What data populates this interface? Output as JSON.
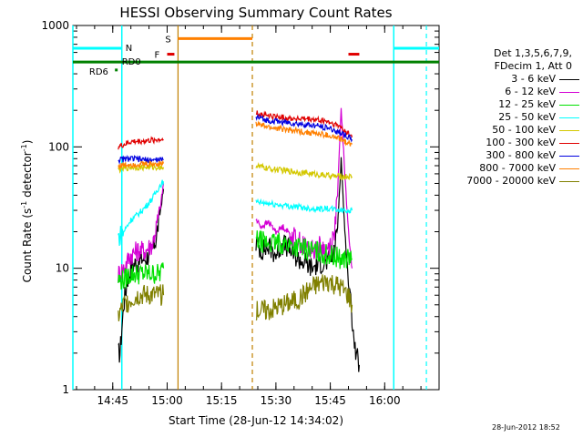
{
  "chart_data": {
    "type": "line",
    "title": "HESSI Observing Summary Count Rates",
    "xlabel": "Start Time (28-Jun-12 14:34:02)",
    "ylabel_main": "Count Rate (s",
    "ylabel_sup": "-1",
    "ylabel_mid": " detector",
    "ylabel_sup2": "-1",
    "ylabel_end": ")",
    "x_unit": "minutes after 14:34:02",
    "xlim": [
      0,
      101
    ],
    "ylim": [
      1,
      1000
    ],
    "yscale": "log",
    "x_ticks": [
      {
        "value": 11,
        "label": "14:45"
      },
      {
        "value": 26,
        "label": "15:00"
      },
      {
        "value": 41,
        "label": "15:15"
      },
      {
        "value": 56,
        "label": "15:30"
      },
      {
        "value": 71,
        "label": "15:45"
      },
      {
        "value": 86,
        "label": "16:00"
      }
    ],
    "y_ticks": [
      {
        "value": 1,
        "label": "1"
      },
      {
        "value": 10,
        "label": "10"
      },
      {
        "value": 100,
        "label": "100"
      },
      {
        "value": 1000,
        "label": "1000"
      }
    ],
    "legend_header": [
      "Det 1,3,5,6,7,9,",
      "FDecim 1, Att 0"
    ],
    "series": [
      {
        "name": "3 - 6 keV",
        "color": "#000000",
        "seg1": [
          [
            12.5,
            2
          ],
          [
            13,
            2
          ],
          [
            14,
            5
          ],
          [
            15,
            8
          ],
          [
            16,
            10
          ],
          [
            17,
            11
          ],
          [
            18,
            11
          ],
          [
            19,
            12
          ],
          [
            20,
            12
          ],
          [
            21,
            13
          ],
          [
            22,
            14
          ],
          [
            23,
            18
          ],
          [
            24,
            28
          ],
          [
            25,
            45
          ]
        ],
        "seg2": [
          [
            50.5,
            16
          ],
          [
            52,
            14
          ],
          [
            54,
            15
          ],
          [
            56,
            13
          ],
          [
            58,
            16
          ],
          [
            60,
            14
          ],
          [
            62,
            12
          ],
          [
            64,
            11
          ],
          [
            66,
            10
          ],
          [
            68,
            11
          ],
          [
            70,
            11
          ],
          [
            72,
            13
          ],
          [
            73,
            22
          ],
          [
            74,
            80
          ],
          [
            75,
            20
          ],
          [
            76,
            8
          ],
          [
            77,
            4
          ],
          [
            78,
            2
          ],
          [
            79,
            1.6
          ]
        ]
      },
      {
        "name": "6 - 12 keV",
        "color": "#d400d4",
        "seg1": [
          [
            12.5,
            9
          ],
          [
            14,
            10
          ],
          [
            16,
            13
          ],
          [
            18,
            14
          ],
          [
            20,
            14
          ],
          [
            22,
            16
          ],
          [
            24,
            30
          ],
          [
            25,
            50
          ]
        ],
        "seg2": [
          [
            50.5,
            25
          ],
          [
            52,
            22
          ],
          [
            54,
            24
          ],
          [
            56,
            20
          ],
          [
            58,
            22
          ],
          [
            60,
            19
          ],
          [
            62,
            17
          ],
          [
            64,
            15
          ],
          [
            66,
            14
          ],
          [
            68,
            15
          ],
          [
            70,
            14
          ],
          [
            72,
            18
          ],
          [
            73,
            40
          ],
          [
            74,
            210
          ],
          [
            75,
            60
          ],
          [
            76,
            20
          ],
          [
            77,
            10
          ]
        ]
      },
      {
        "name": "12 - 25 keV",
        "color": "#00e000",
        "seg1": [
          [
            12.5,
            8
          ],
          [
            14,
            8
          ],
          [
            16,
            9
          ],
          [
            18,
            9
          ],
          [
            20,
            9
          ],
          [
            22,
            9
          ],
          [
            24,
            9
          ],
          [
            25,
            10
          ]
        ],
        "seg2": [
          [
            50.5,
            17
          ],
          [
            54,
            16
          ],
          [
            58,
            16
          ],
          [
            62,
            15
          ],
          [
            66,
            14
          ],
          [
            70,
            13
          ],
          [
            74,
            12
          ],
          [
            76,
            12
          ],
          [
            77,
            12
          ]
        ]
      },
      {
        "name": "25 - 50 keV",
        "color": "#00ffff",
        "seg1": [
          [
            12.5,
            18
          ],
          [
            14,
            20
          ],
          [
            16,
            25
          ],
          [
            18,
            28
          ],
          [
            20,
            32
          ],
          [
            22,
            38
          ],
          [
            24,
            48
          ],
          [
            25,
            52
          ]
        ],
        "seg2": [
          [
            50.5,
            35
          ],
          [
            54,
            34
          ],
          [
            58,
            33
          ],
          [
            62,
            32
          ],
          [
            66,
            31
          ],
          [
            70,
            31
          ],
          [
            74,
            30
          ],
          [
            77,
            30
          ]
        ]
      },
      {
        "name": "50 - 100 keV",
        "color": "#d4c800",
        "seg1": [
          [
            12.5,
            65
          ],
          [
            16,
            68
          ],
          [
            20,
            68
          ],
          [
            24,
            68
          ],
          [
            25,
            68
          ]
        ],
        "seg2": [
          [
            50.5,
            70
          ],
          [
            54,
            66
          ],
          [
            58,
            64
          ],
          [
            62,
            62
          ],
          [
            66,
            60
          ],
          [
            70,
            58
          ],
          [
            74,
            57
          ],
          [
            77,
            57
          ]
        ]
      },
      {
        "name": "100 - 300 keV",
        "color": "#e00000",
        "seg1": [
          [
            12.5,
            100
          ],
          [
            16,
            110
          ],
          [
            20,
            112
          ],
          [
            24,
            115
          ],
          [
            25,
            115
          ]
        ],
        "seg2": [
          [
            50.5,
            190
          ],
          [
            54,
            180
          ],
          [
            58,
            175
          ],
          [
            62,
            170
          ],
          [
            66,
            168
          ],
          [
            70,
            162
          ],
          [
            74,
            145
          ],
          [
            77,
            120
          ]
        ]
      },
      {
        "name": "300 - 800 keV",
        "color": "#0000e0",
        "seg1": [
          [
            12.5,
            78
          ],
          [
            16,
            80
          ],
          [
            20,
            78
          ],
          [
            24,
            78
          ],
          [
            25,
            78
          ]
        ],
        "seg2": [
          [
            50.5,
            175
          ],
          [
            54,
            165
          ],
          [
            58,
            160
          ],
          [
            62,
            155
          ],
          [
            66,
            150
          ],
          [
            70,
            145
          ],
          [
            74,
            130
          ],
          [
            77,
            115
          ]
        ]
      },
      {
        "name": "800 - 7000 keV",
        "color": "#ff8000",
        "seg1": [
          [
            12.5,
            70
          ],
          [
            16,
            72
          ],
          [
            20,
            72
          ],
          [
            24,
            73
          ],
          [
            25,
            73
          ]
        ],
        "seg2": [
          [
            50.5,
            155
          ],
          [
            54,
            145
          ],
          [
            58,
            140
          ],
          [
            62,
            135
          ],
          [
            66,
            130
          ],
          [
            70,
            125
          ],
          [
            74,
            115
          ],
          [
            77,
            105
          ]
        ]
      },
      {
        "name": "7000 - 20000 keV",
        "color": "#808000",
        "seg1": [
          [
            12.5,
            4
          ],
          [
            14,
            5
          ],
          [
            16,
            5.5
          ],
          [
            18,
            6
          ],
          [
            20,
            6
          ],
          [
            22,
            6
          ],
          [
            24,
            6
          ],
          [
            25,
            6
          ]
        ],
        "seg2": [
          [
            50.5,
            4.5
          ],
          [
            54,
            4.5
          ],
          [
            58,
            5
          ],
          [
            62,
            5.5
          ],
          [
            66,
            7
          ],
          [
            70,
            8
          ],
          [
            74,
            7
          ],
          [
            76,
            6
          ],
          [
            77,
            5
          ]
        ]
      }
    ],
    "annotations": {
      "n_label": "N",
      "s_label": "S",
      "f_label": "F",
      "rd0_label": "RD0",
      "rd6_label": "RD6",
      "night_bars": [
        [
          0,
          13.5,
          650
        ],
        [
          88.5,
          101,
          650
        ]
      ],
      "saa_bar": [
        29,
        49.5,
        780
      ],
      "flare_marks": [
        [
          26,
          28,
          580
        ],
        [
          76,
          79,
          580
        ]
      ],
      "green_line": [
        0,
        101,
        500
      ],
      "cyan_verticals": [
        0,
        13.5,
        88.5
      ],
      "cyan_dashed": [
        13.5,
        97.5
      ],
      "orange_solid": [
        29
      ],
      "orange_dashed": [
        49.5
      ]
    },
    "grid": false,
    "legend_position": "right"
  },
  "timestamp": "28-Jun-2012 18:52",
  "colors": {
    "axis": "#000000",
    "night": "#00ffff",
    "saa": "#ff8000",
    "flare": "#e00000",
    "decim": "#008000"
  }
}
